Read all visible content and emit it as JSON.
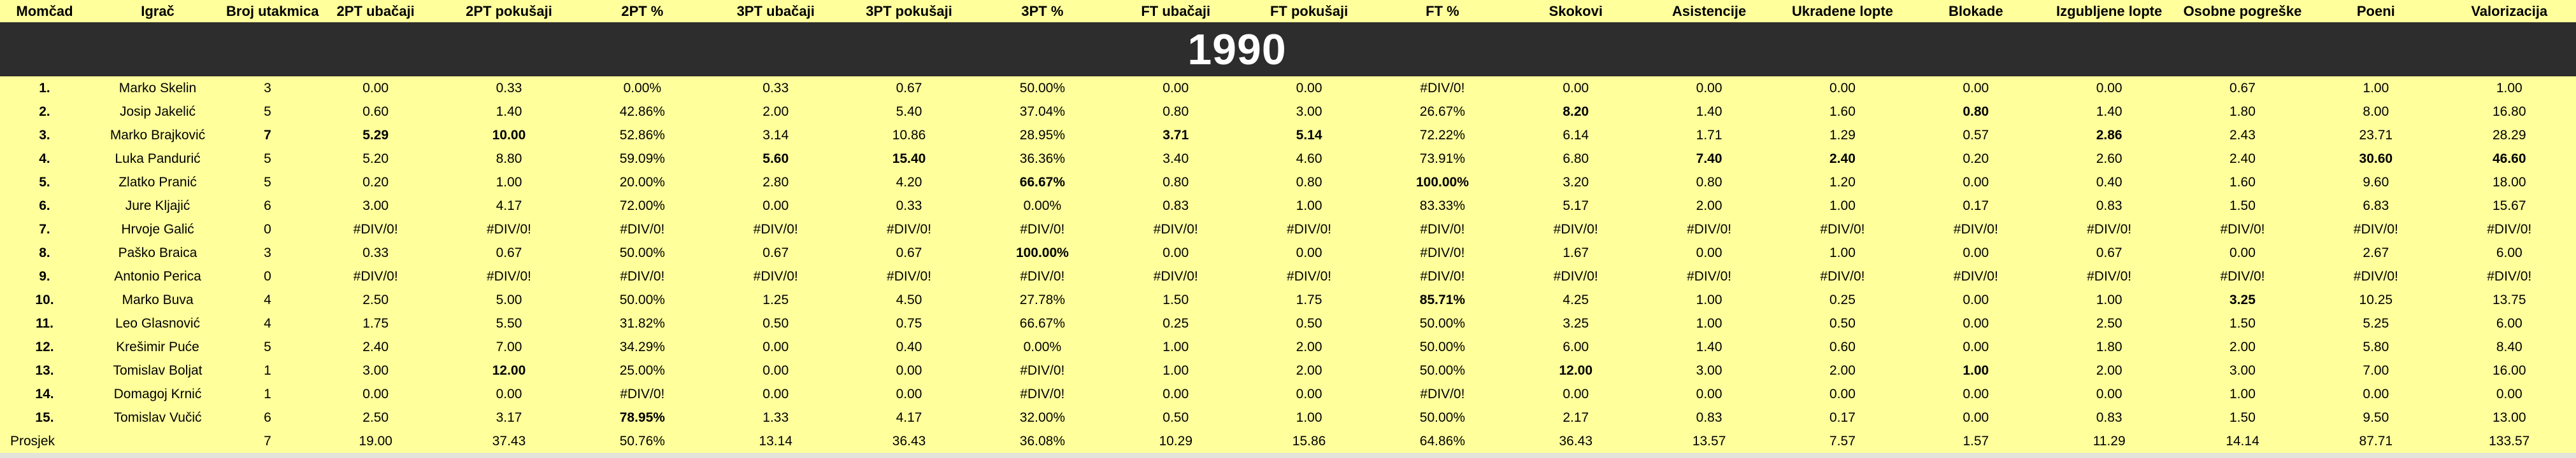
{
  "sheet": {
    "year_banner": "1990",
    "colors": {
      "background": "#FFFF9C",
      "banner_bg": "#2D2D2D",
      "banner_text": "#FFFFFF",
      "highlight_red": "#FF0000",
      "highlight_teal": "#2E6E6E",
      "text": "#000000"
    },
    "columns": [
      "Momčad",
      "Igrač",
      "Broj utakmica",
      "2PT ubačaji",
      "2PT pokušaji",
      "2PT %",
      "3PT ubačaji",
      "3PT pokušaji",
      "3PT %",
      "FT ubačaji",
      "FT pokušaji",
      "FT %",
      "Skokovi",
      "Asistencije",
      "Ukradene lopte",
      "Blokade",
      "Izgubljene lopte",
      "Osobne pogreške",
      "Poeni",
      "Valorizacija"
    ],
    "rows": [
      {
        "cells": [
          "1.",
          "Marko Skelin",
          "3",
          "0.00",
          "0.33",
          "0.00%",
          "0.33",
          "0.67",
          "50.00%",
          "0.00",
          "0.00",
          "#DIV/0!",
          "0.00",
          "0.00",
          "0.00",
          "0.00",
          "0.00",
          "0.67",
          "1.00",
          "1.00"
        ],
        "fmt": {}
      },
      {
        "cells": [
          "2.",
          "Josip Jakelić",
          "5",
          "0.60",
          "1.40",
          "42.86%",
          "2.00",
          "5.40",
          "37.04%",
          "0.80",
          "3.00",
          "26.67%",
          "8.20",
          "1.40",
          "1.60",
          "0.80",
          "1.40",
          "1.80",
          "8.00",
          "16.80"
        ],
        "fmt": {
          "12": "b",
          "15": "b"
        }
      },
      {
        "cells": [
          "3.",
          "Marko Brajković",
          "7",
          "5.29",
          "10.00",
          "52.86%",
          "3.14",
          "10.86",
          "28.95%",
          "3.71",
          "5.14",
          "72.22%",
          "6.14",
          "1.71",
          "1.29",
          "0.57",
          "2.86",
          "2.43",
          "23.71",
          "28.29"
        ],
        "fmt": {
          "2": "b",
          "3": "b",
          "4": "b",
          "9": "b",
          "10": "b",
          "16": "b"
        }
      },
      {
        "cells": [
          "4.",
          "Luka Pandurić",
          "5",
          "5.20",
          "8.80",
          "59.09%",
          "5.60",
          "15.40",
          "36.36%",
          "3.40",
          "4.60",
          "73.91%",
          "6.80",
          "7.40",
          "2.40",
          "0.20",
          "2.60",
          "2.40",
          "30.60",
          "46.60"
        ],
        "fmt": {
          "6": "r",
          "7": "r",
          "13": "r",
          "14": "b",
          "18": "r",
          "19": "r"
        }
      },
      {
        "cells": [
          "5.",
          "Zlatko Pranić",
          "5",
          "0.20",
          "1.00",
          "20.00%",
          "2.80",
          "4.20",
          "66.67%",
          "0.80",
          "0.80",
          "100.00%",
          "3.20",
          "0.80",
          "1.20",
          "0.00",
          "0.40",
          "1.60",
          "9.60",
          "18.00"
        ],
        "fmt": {
          "8": "r",
          "11": "t"
        }
      },
      {
        "cells": [
          "6.",
          "Jure Kljajić",
          "6",
          "3.00",
          "4.17",
          "72.00%",
          "0.00",
          "0.33",
          "0.00%",
          "0.83",
          "1.00",
          "83.33%",
          "5.17",
          "2.00",
          "1.00",
          "0.17",
          "0.83",
          "1.50",
          "6.83",
          "15.67"
        ],
        "fmt": {}
      },
      {
        "cells": [
          "7.",
          "Hrvoje Galić",
          "0",
          "#DIV/0!",
          "#DIV/0!",
          "#DIV/0!",
          "#DIV/0!",
          "#DIV/0!",
          "#DIV/0!",
          "#DIV/0!",
          "#DIV/0!",
          "#DIV/0!",
          "#DIV/0!",
          "#DIV/0!",
          "#DIV/0!",
          "#DIV/0!",
          "#DIV/0!",
          "#DIV/0!",
          "#DIV/0!",
          "#DIV/0!"
        ],
        "fmt": {}
      },
      {
        "cells": [
          "8.",
          "Paško Braica",
          "3",
          "0.33",
          "0.67",
          "50.00%",
          "0.67",
          "0.67",
          "100.00%",
          "0.00",
          "0.00",
          "#DIV/0!",
          "1.67",
          "0.00",
          "1.00",
          "0.00",
          "0.67",
          "0.00",
          "2.67",
          "6.00"
        ],
        "fmt": {
          "8": "t"
        }
      },
      {
        "cells": [
          "9.",
          "Antonio Perica",
          "0",
          "#DIV/0!",
          "#DIV/0!",
          "#DIV/0!",
          "#DIV/0!",
          "#DIV/0!",
          "#DIV/0!",
          "#DIV/0!",
          "#DIV/0!",
          "#DIV/0!",
          "#DIV/0!",
          "#DIV/0!",
          "#DIV/0!",
          "#DIV/0!",
          "#DIV/0!",
          "#DIV/0!",
          "#DIV/0!",
          "#DIV/0!"
        ],
        "fmt": {}
      },
      {
        "cells": [
          "10.",
          "Marko Buva",
          "4",
          "2.50",
          "5.00",
          "50.00%",
          "1.25",
          "4.50",
          "27.78%",
          "1.50",
          "1.75",
          "85.71%",
          "4.25",
          "1.00",
          "0.25",
          "0.00",
          "1.00",
          "3.25",
          "10.25",
          "13.75"
        ],
        "fmt": {
          "11": "b",
          "17": "b"
        }
      },
      {
        "cells": [
          "11.",
          "Leo Glasnović",
          "4",
          "1.75",
          "5.50",
          "31.82%",
          "0.50",
          "0.75",
          "66.67%",
          "0.25",
          "0.50",
          "50.00%",
          "3.25",
          "1.00",
          "0.50",
          "0.00",
          "2.50",
          "1.50",
          "5.25",
          "6.00"
        ],
        "fmt": {}
      },
      {
        "cells": [
          "12.",
          "Krešimir Puće",
          "5",
          "2.40",
          "7.00",
          "34.29%",
          "0.00",
          "0.40",
          "0.00%",
          "1.00",
          "2.00",
          "50.00%",
          "6.00",
          "1.40",
          "0.60",
          "0.00",
          "1.80",
          "2.00",
          "5.80",
          "8.40"
        ],
        "fmt": {}
      },
      {
        "cells": [
          "13.",
          "Tomislav Boljat",
          "1",
          "3.00",
          "12.00",
          "25.00%",
          "0.00",
          "0.00",
          "#DIV/0!",
          "1.00",
          "2.00",
          "50.00%",
          "12.00",
          "3.00",
          "2.00",
          "1.00",
          "2.00",
          "3.00",
          "7.00",
          "16.00"
        ],
        "fmt": {
          "4": "t",
          "12": "t",
          "15": "t"
        }
      },
      {
        "cells": [
          "14.",
          "Domagoj Krnić",
          "1",
          "0.00",
          "0.00",
          "#DIV/0!",
          "0.00",
          "0.00",
          "#DIV/0!",
          "0.00",
          "0.00",
          "#DIV/0!",
          "0.00",
          "0.00",
          "0.00",
          "0.00",
          "0.00",
          "1.00",
          "0.00",
          "0.00"
        ],
        "fmt": {}
      },
      {
        "cells": [
          "15.",
          "Tomislav Vučić",
          "6",
          "2.50",
          "3.17",
          "78.95%",
          "1.33",
          "4.17",
          "32.00%",
          "0.50",
          "1.00",
          "50.00%",
          "2.17",
          "0.83",
          "0.17",
          "0.00",
          "0.83",
          "1.50",
          "9.50",
          "13.00"
        ],
        "fmt": {
          "5": "b"
        }
      },
      {
        "cells": [
          "Prosjek",
          "",
          "7",
          "19.00",
          "37.43",
          "50.76%",
          "13.14",
          "36.43",
          "36.08%",
          "10.29",
          "15.86",
          "64.86%",
          "36.43",
          "13.57",
          "7.57",
          "1.57",
          "11.29",
          "14.14",
          "87.71",
          "133.57"
        ],
        "fmt": {
          "0": "left"
        },
        "type": "average"
      }
    ]
  }
}
